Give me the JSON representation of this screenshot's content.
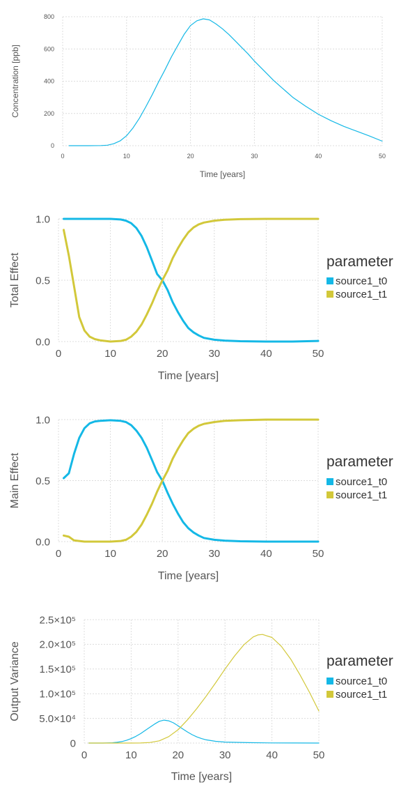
{
  "colors": {
    "source1_t0": "#14b8e6",
    "source1_t1": "#d2c83a"
  },
  "chart_data": [
    {
      "type": "line",
      "id": "concentration",
      "xlabel": "Time [years]",
      "ylabel": "Concentration [ppb]",
      "xlim": [
        0,
        50
      ],
      "ylim": [
        0,
        800
      ],
      "xticks": [
        "0",
        "10",
        "20",
        "30",
        "40",
        "50"
      ],
      "yticks": [
        "0",
        "200",
        "400",
        "600",
        "800"
      ],
      "grid": true,
      "series": [
        {
          "x": [
            1,
            2,
            4,
            6,
            7,
            8,
            9,
            10,
            11,
            12,
            13,
            14,
            15,
            16,
            17,
            18,
            19,
            20,
            21,
            22,
            23,
            24,
            25,
            26,
            27,
            28,
            29,
            30,
            31,
            32,
            33,
            34,
            35,
            36,
            38,
            40,
            42,
            44,
            46,
            48,
            50
          ],
          "values": [
            0,
            0,
            0,
            1,
            3,
            12,
            30,
            62,
            110,
            170,
            240,
            315,
            395,
            470,
            550,
            620,
            690,
            745,
            775,
            787,
            780,
            755,
            725,
            690,
            650,
            610,
            570,
            525,
            485,
            445,
            405,
            370,
            335,
            300,
            245,
            195,
            155,
            120,
            90,
            60,
            28
          ]
        }
      ]
    },
    {
      "type": "line",
      "id": "total-effect",
      "xlabel": "Time [years]",
      "ylabel": "Total Effect",
      "xlim": [
        0,
        50
      ],
      "ylim": [
        0,
        1.0
      ],
      "xticks": [
        "0",
        "10",
        "20",
        "30",
        "40",
        "50"
      ],
      "yticks": [
        "0.0",
        "0.5",
        "1.0"
      ],
      "grid": true,
      "legend": {
        "title": "parameter",
        "position": "right"
      },
      "series": [
        {
          "name": "source1_t0",
          "x": [
            1,
            2,
            4,
            6,
            8,
            10,
            12,
            13,
            14,
            15,
            16,
            17,
            18,
            19,
            20,
            21,
            22,
            23,
            24,
            25,
            26,
            27,
            28,
            30,
            32,
            35,
            40,
            45,
            50
          ],
          "values": [
            1.0,
            1.0,
            1.0,
            1.0,
            1.0,
            1.0,
            0.995,
            0.985,
            0.965,
            0.925,
            0.86,
            0.77,
            0.66,
            0.55,
            0.5,
            0.42,
            0.32,
            0.24,
            0.17,
            0.11,
            0.075,
            0.05,
            0.03,
            0.015,
            0.008,
            0.003,
            0.0,
            0.0,
            0.005
          ]
        },
        {
          "name": "source1_t1",
          "x": [
            1,
            2,
            3,
            4,
            5,
            6,
            7,
            8,
            10,
            12,
            13,
            14,
            15,
            16,
            17,
            18,
            19,
            20,
            21,
            22,
            23,
            24,
            25,
            26,
            27,
            28,
            30,
            32,
            35,
            40,
            45,
            50
          ],
          "values": [
            0.91,
            0.7,
            0.45,
            0.2,
            0.09,
            0.04,
            0.02,
            0.01,
            0.0,
            0.005,
            0.015,
            0.04,
            0.08,
            0.14,
            0.22,
            0.31,
            0.41,
            0.5,
            0.58,
            0.68,
            0.76,
            0.83,
            0.89,
            0.93,
            0.955,
            0.97,
            0.985,
            0.993,
            0.998,
            1.0,
            1.0,
            1.0
          ]
        }
      ]
    },
    {
      "type": "line",
      "id": "main-effect",
      "xlabel": "Time [years]",
      "ylabel": "Main Effect",
      "xlim": [
        0,
        50
      ],
      "ylim": [
        0,
        1.0
      ],
      "xticks": [
        "0",
        "10",
        "20",
        "30",
        "40",
        "50"
      ],
      "yticks": [
        "0.0",
        "0.5",
        "1.0"
      ],
      "grid": true,
      "legend": {
        "title": "parameter",
        "position": "right"
      },
      "series": [
        {
          "name": "source1_t0",
          "x": [
            1,
            2,
            3,
            4,
            5,
            6,
            7,
            8,
            10,
            12,
            13,
            14,
            15,
            16,
            17,
            18,
            19,
            20,
            21,
            22,
            23,
            24,
            25,
            26,
            27,
            28,
            30,
            32,
            35,
            40,
            45,
            50
          ],
          "values": [
            0.52,
            0.56,
            0.72,
            0.85,
            0.93,
            0.97,
            0.985,
            0.99,
            0.995,
            0.99,
            0.98,
            0.955,
            0.91,
            0.85,
            0.77,
            0.67,
            0.57,
            0.5,
            0.4,
            0.31,
            0.23,
            0.16,
            0.11,
            0.075,
            0.05,
            0.03,
            0.015,
            0.008,
            0.003,
            0.0,
            0.0,
            0.0
          ]
        },
        {
          "name": "source1_t1",
          "x": [
            1,
            2,
            3,
            4,
            5,
            6,
            8,
            10,
            12,
            13,
            14,
            15,
            16,
            17,
            18,
            19,
            20,
            21,
            22,
            23,
            24,
            25,
            26,
            27,
            28,
            30,
            32,
            35,
            40,
            45,
            50
          ],
          "values": [
            0.05,
            0.04,
            0.01,
            0.005,
            0.0,
            0.0,
            0.0,
            0.0,
            0.005,
            0.015,
            0.04,
            0.08,
            0.14,
            0.22,
            0.31,
            0.41,
            0.5,
            0.58,
            0.68,
            0.76,
            0.83,
            0.89,
            0.925,
            0.95,
            0.965,
            0.98,
            0.99,
            0.995,
            1.0,
            1.0,
            1.0
          ]
        }
      ]
    },
    {
      "type": "line",
      "id": "output-variance",
      "xlabel": "Time [years]",
      "ylabel": "Output Variance",
      "xlim": [
        0,
        50
      ],
      "ylim": [
        0,
        250000
      ],
      "xticks": [
        "0",
        "10",
        "20",
        "30",
        "40",
        "50"
      ],
      "yticks": [
        "0",
        "5.0×10⁴",
        "1.0×10⁵",
        "1.5×10⁵",
        "2.0×10⁵",
        "2.5×10⁵"
      ],
      "grid": true,
      "legend": {
        "title": "parameter",
        "position": "right"
      },
      "series": [
        {
          "name": "source1_t0",
          "x": [
            1,
            4,
            6,
            7,
            8,
            9,
            10,
            11,
            12,
            13,
            14,
            15,
            16,
            17,
            18,
            19,
            20,
            21,
            22,
            23,
            24,
            25,
            26,
            28,
            30,
            35,
            40,
            45,
            50
          ],
          "values": [
            0,
            0,
            500,
            1500,
            3000,
            5500,
            9000,
            13500,
            19000,
            25500,
            32000,
            38500,
            44000,
            46500,
            45000,
            41000,
            35000,
            28500,
            22500,
            17000,
            12500,
            9000,
            6500,
            3500,
            2000,
            800,
            300,
            100,
            0
          ]
        },
        {
          "name": "source1_t1",
          "x": [
            1,
            6,
            10,
            12,
            14,
            16,
            18,
            20,
            22,
            24,
            26,
            28,
            30,
            32,
            34,
            36,
            37,
            38,
            40,
            42,
            44,
            46,
            48,
            50
          ],
          "values": [
            0,
            0,
            0,
            200,
            1200,
            4500,
            13000,
            27000,
            47000,
            70000,
            95000,
            122000,
            150000,
            176000,
            199000,
            215000,
            219000,
            220000,
            214000,
            196000,
            170000,
            138000,
            103000,
            65000
          ]
        }
      ]
    }
  ]
}
